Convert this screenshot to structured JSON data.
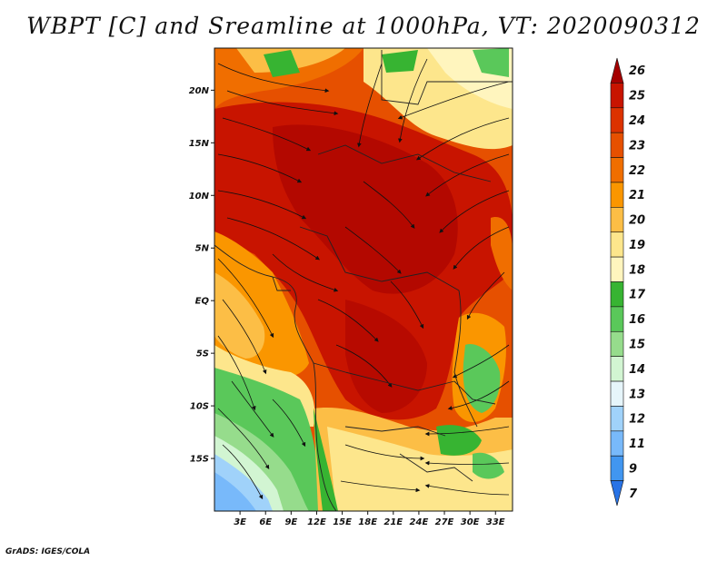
{
  "title": "WBPT [C] and Sreamline at 1000hPa, VT: 2020090312",
  "footer": "GrADS: IGES/COLA",
  "map": {
    "lon_range": [
      0,
      35
    ],
    "lat_range": [
      -20,
      24
    ],
    "lat_ticks": [
      {
        "value": 20,
        "label": "20N"
      },
      {
        "value": 15,
        "label": "15N"
      },
      {
        "value": 10,
        "label": "10N"
      },
      {
        "value": 5,
        "label": "5N"
      },
      {
        "value": 0,
        "label": "EQ"
      },
      {
        "value": -5,
        "label": "5S"
      },
      {
        "value": -10,
        "label": "10S"
      },
      {
        "value": -15,
        "label": "15S"
      }
    ],
    "lon_ticks": [
      {
        "value": 3,
        "label": "3E"
      },
      {
        "value": 6,
        "label": "6E"
      },
      {
        "value": 9,
        "label": "9E"
      },
      {
        "value": 12,
        "label": "12E"
      },
      {
        "value": 15,
        "label": "15E"
      },
      {
        "value": 18,
        "label": "18E"
      },
      {
        "value": 21,
        "label": "21E"
      },
      {
        "value": 24,
        "label": "24E"
      },
      {
        "value": 27,
        "label": "27E"
      },
      {
        "value": 30,
        "label": "30E"
      },
      {
        "value": 33,
        "label": "33E"
      }
    ]
  },
  "colorbar": {
    "levels": [
      "26",
      "25",
      "24",
      "23",
      "22",
      "21",
      "20",
      "19",
      "18",
      "17",
      "16",
      "15",
      "14",
      "13",
      "12",
      "11",
      "9",
      "7"
    ],
    "colors": [
      "#a50000",
      "#c81400",
      "#dc3200",
      "#e65000",
      "#f06e00",
      "#fa9600",
      "#fcbe46",
      "#fde68c",
      "#fff5be",
      "#37b432",
      "#5ac85a",
      "#96dc8c",
      "#d2f5d2",
      "#e6f5fa",
      "#a0d2fa",
      "#78b9fa",
      "#4196f0",
      "#2873e6"
    ]
  }
}
